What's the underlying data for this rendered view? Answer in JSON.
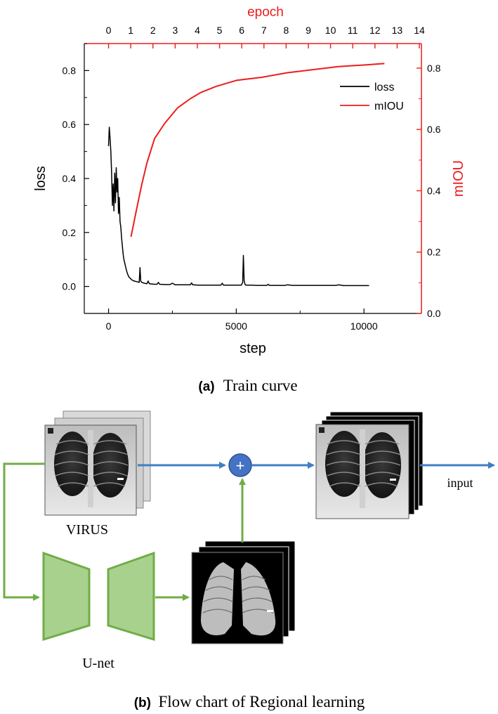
{
  "panel_a": {
    "caption_letter": "(a)",
    "caption_text": "Train curve"
  },
  "panel_b": {
    "caption_letter": "(b)",
    "caption_text": "Flow chart of Regional learning",
    "virus_label": "VIRUS",
    "unet_label": "U-net",
    "input_label": "input",
    "plus_symbol": "+"
  },
  "colors": {
    "loss": "#000000",
    "miou": "#ee1c1c",
    "arrow_blue": "#3f7ec3",
    "arrow_green": "#70ad47",
    "unet_fill": "#a9d18e",
    "plus_fill": "#4472c4"
  },
  "chart_data": {
    "type": "line",
    "xlabel": "step",
    "ylabel_left": "loss",
    "ylabel_right": "mIOU",
    "top_xlabel": "epoch",
    "xlim": [
      -950,
      12250
    ],
    "xticks": [
      0,
      5000,
      10000
    ],
    "ylim_left": [
      -0.1,
      0.9
    ],
    "yticks_left": [
      0.0,
      0.2,
      0.4,
      0.6,
      0.8
    ],
    "ylim_right": [
      0.0,
      0.88
    ],
    "yticks_right": [
      0.0,
      0.2,
      0.4,
      0.6,
      0.8
    ],
    "top_ticks": [
      0,
      1,
      2,
      3,
      4,
      5,
      6,
      7,
      8,
      9,
      10,
      11,
      12,
      13,
      14
    ],
    "legend_position": "top-right",
    "series": [
      {
        "name": "loss",
        "axis": "left",
        "x": [
          0,
          30,
          60,
          90,
          120,
          150,
          180,
          210,
          240,
          270,
          300,
          330,
          360,
          390,
          420,
          450,
          480,
          510,
          540,
          570,
          600,
          650,
          700,
          750,
          800,
          900,
          1000,
          1100,
          1200,
          1230,
          1260,
          1300,
          1400,
          1500,
          1550,
          1600,
          1700,
          1800,
          1900,
          1950,
          2000,
          2200,
          2400,
          2500,
          2600,
          2800,
          3000,
          3200,
          3250,
          3300,
          3500,
          3800,
          4000,
          4200,
          4400,
          4450,
          4500,
          4800,
          5000,
          5200,
          5250,
          5280,
          5310,
          5350,
          5400,
          5600,
          5800,
          6000,
          6200,
          6250,
          6300,
          6600,
          6900,
          7000,
          7200,
          7500,
          7800,
          8000,
          8300,
          8600,
          8900,
          9000,
          9200,
          9500,
          9800,
          10000,
          10200
        ],
        "y": [
          0.52,
          0.59,
          0.55,
          0.5,
          0.42,
          0.3,
          0.38,
          0.28,
          0.42,
          0.31,
          0.44,
          0.35,
          0.4,
          0.27,
          0.33,
          0.24,
          0.22,
          0.18,
          0.15,
          0.12,
          0.1,
          0.08,
          0.06,
          0.045,
          0.035,
          0.025,
          0.02,
          0.018,
          0.015,
          0.07,
          0.02,
          0.015,
          0.012,
          0.01,
          0.02,
          0.01,
          0.009,
          0.008,
          0.008,
          0.015,
          0.008,
          0.007,
          0.007,
          0.012,
          0.006,
          0.006,
          0.006,
          0.006,
          0.013,
          0.006,
          0.005,
          0.005,
          0.005,
          0.005,
          0.005,
          0.012,
          0.005,
          0.005,
          0.005,
          0.005,
          0.015,
          0.115,
          0.02,
          0.006,
          0.005,
          0.005,
          0.004,
          0.004,
          0.004,
          0.008,
          0.004,
          0.004,
          0.004,
          0.006,
          0.004,
          0.004,
          0.004,
          0.004,
          0.004,
          0.004,
          0.004,
          0.006,
          0.003,
          0.003,
          0.003,
          0.003,
          0.003
        ]
      },
      {
        "name": "mIOU",
        "axis": "right",
        "x": [
          880,
          1100,
          1300,
          1500,
          1800,
          2200,
          2700,
          3200,
          3600,
          4200,
          5000,
          6000,
          7000,
          8000,
          9000,
          10000,
          10800
        ],
        "y": [
          0.25,
          0.34,
          0.42,
          0.49,
          0.57,
          0.62,
          0.67,
          0.7,
          0.72,
          0.74,
          0.76,
          0.77,
          0.785,
          0.795,
          0.805,
          0.81,
          0.815
        ]
      }
    ]
  }
}
